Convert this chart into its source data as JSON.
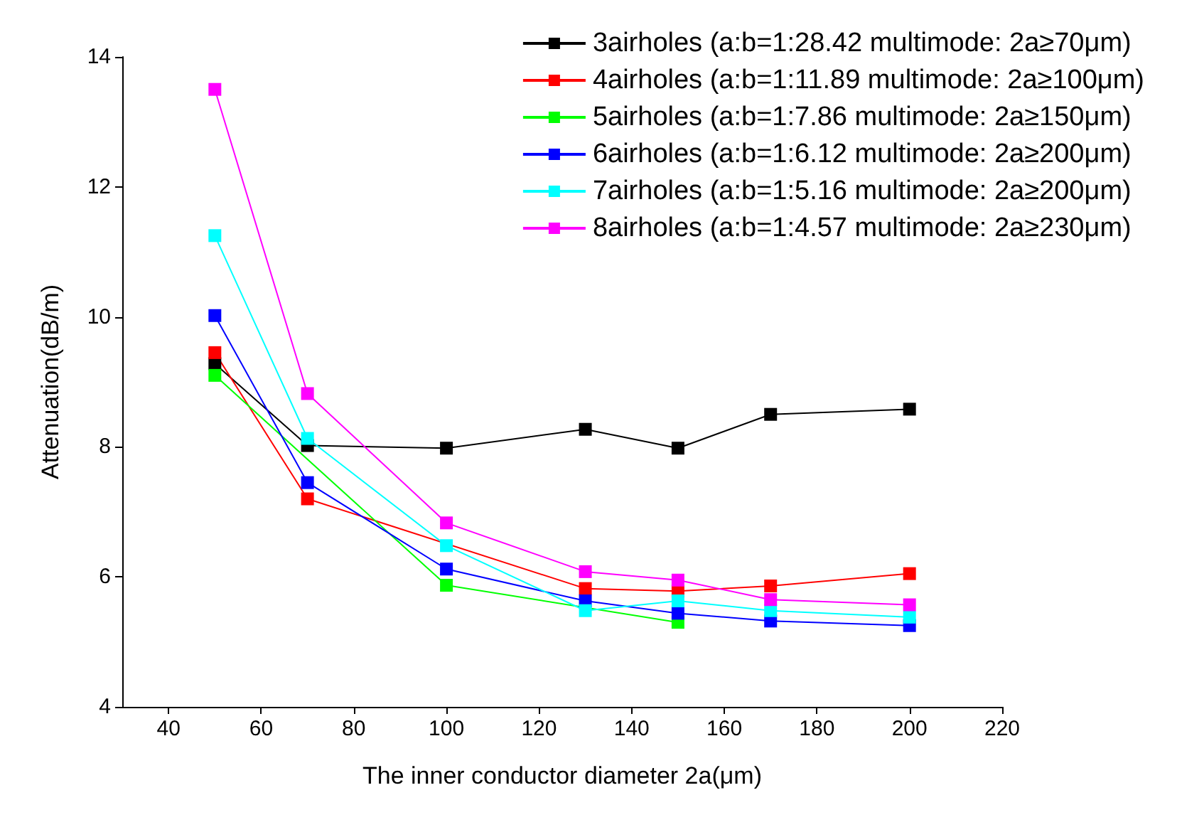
{
  "chart_data": {
    "type": "line",
    "xlabel": "The inner conductor diameter 2a(μm)",
    "ylabel": "Attenuation(dB/m)",
    "x": [
      50,
      70,
      100,
      130,
      150,
      170,
      200
    ],
    "series": [
      {
        "name": "3airholes (a:b=1:28.42 multimode: 2a≥70μm)",
        "color": "#000000",
        "values": [
          9.28,
          8.02,
          7.98,
          8.27,
          7.98,
          8.5,
          8.58
        ]
      },
      {
        "name": "4airholes (a:b=1:11.89 multimode: 2a≥100μm)",
        "color": "#ff0000",
        "values": [
          9.45,
          7.2,
          null,
          5.82,
          5.78,
          5.86,
          6.05
        ]
      },
      {
        "name": "5airholes (a:b=1:7.86 multimode: 2a≥150μm)",
        "color": "#00ff00",
        "values": [
          9.1,
          null,
          5.87,
          null,
          5.3,
          null,
          null
        ]
      },
      {
        "name": "6airholes (a:b=1:6.12 multimode: 2a≥200μm)",
        "color": "#0000ff",
        "values": [
          10.02,
          7.45,
          6.12,
          5.63,
          5.44,
          5.32,
          5.25
        ]
      },
      {
        "name": "7airholes (a:b=1:5.16 multimode: 2a≥200μm)",
        "color": "#00ffff",
        "values": [
          11.25,
          8.13,
          6.48,
          5.48,
          5.63,
          5.48,
          5.38
        ]
      },
      {
        "name": "8airholes (a:b=1:4.57 multimode: 2a≥230μm)",
        "color": "#ff00ff",
        "values": [
          13.5,
          8.82,
          6.83,
          6.08,
          5.95,
          5.65,
          5.57
        ]
      }
    ],
    "xlim": [
      30,
      220
    ],
    "xticks": [
      40,
      60,
      80,
      100,
      120,
      140,
      160,
      180,
      200,
      220
    ],
    "ylim": [
      4,
      14
    ],
    "yticks": [
      4,
      6,
      8,
      10,
      12,
      14
    ],
    "grid": false,
    "legend": "top right",
    "marker": "square",
    "line_style": "solid"
  }
}
